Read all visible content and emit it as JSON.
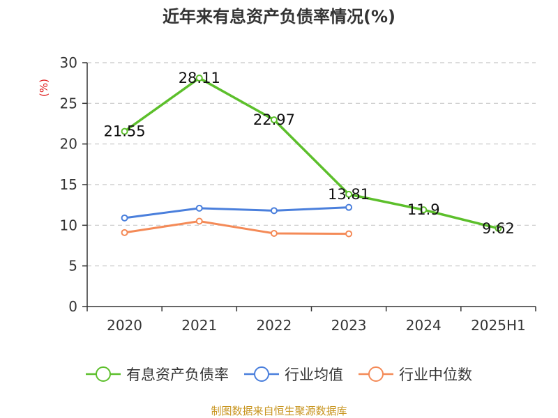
{
  "chart_data": {
    "type": "line",
    "title": "近年来有息资产负债率情况(%)",
    "ylabel": "(%)",
    "xlabel": "",
    "categories": [
      "2020",
      "2021",
      "2022",
      "2023",
      "2024",
      "2025H1"
    ],
    "ylim": [
      0,
      30
    ],
    "yticks": [
      0,
      5,
      10,
      15,
      20,
      25,
      30
    ],
    "grid": true,
    "legend_position": "bottom",
    "series": [
      {
        "name": "有息资产负债率",
        "color": "#5cbf2b",
        "values": [
          21.55,
          28.11,
          22.97,
          13.81,
          11.9,
          9.62
        ],
        "labels": [
          "21.55",
          "28.11",
          "22.97",
          "13.81",
          "11.9",
          "9.62"
        ]
      },
      {
        "name": "行业均值",
        "color": "#4a7fdc",
        "values": [
          10.9,
          12.1,
          11.8,
          12.2,
          null,
          null
        ]
      },
      {
        "name": "行业中位数",
        "color": "#f48a57",
        "values": [
          9.1,
          10.5,
          9.0,
          8.95,
          null,
          null
        ]
      }
    ]
  },
  "source": "制图数据来自恒生聚源数据库"
}
